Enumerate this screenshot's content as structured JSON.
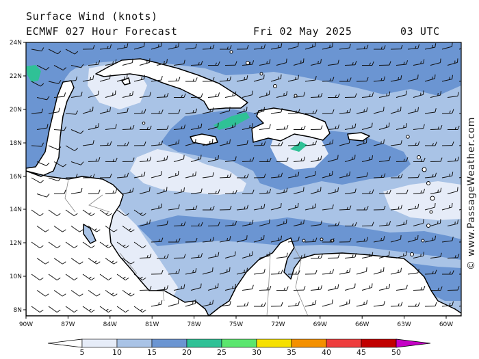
{
  "header": {
    "line1": "Surface Wind (knots)",
    "model": "ECMWF 027 Hour Forecast",
    "date": "Fri 02 May 2025",
    "time": "03 UTC"
  },
  "credit": "© www.PassageWeather.com",
  "axes": {
    "lat_labels": [
      "24N",
      "22N",
      "20N",
      "18N",
      "16N",
      "14N",
      "12N",
      "10N",
      "8N"
    ],
    "lon_labels": [
      "90W",
      "87W",
      "84W",
      "81W",
      "78W",
      "75W",
      "72W",
      "69W",
      "66W",
      "63W",
      "60W"
    ]
  },
  "colorbar": {
    "labels": [
      "5",
      "10",
      "15",
      "20",
      "25",
      "30",
      "35",
      "40",
      "45",
      "50"
    ],
    "colors": [
      "#e6ecf8",
      "#a9c3e6",
      "#6b95d2",
      "#2fc196",
      "#5ae66e",
      "#f6e000",
      "#f49000",
      "#ee3d3d",
      "#c10000",
      "#c500c5"
    ]
  },
  "map_colors": {
    "ocean_base": "#a9c3e6",
    "strong": "#6b95d2",
    "light": "#e6ecf8",
    "gale": "#2fc196",
    "land": "#ffffff"
  }
}
